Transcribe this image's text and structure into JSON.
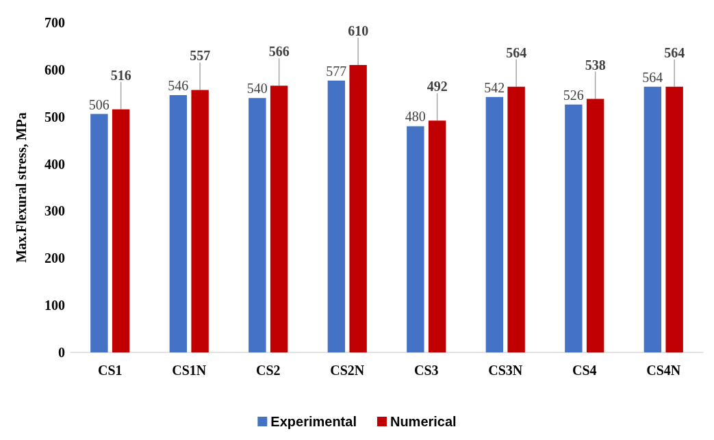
{
  "chart_data": {
    "type": "bar",
    "ylabel": "Max.Flexural stress, MPa",
    "categories": [
      "CS1",
      "CS1N",
      "CS2",
      "CS2N",
      "CS3",
      "CS3N",
      "CS4",
      "CS4N"
    ],
    "series": [
      {
        "name": "Experimental",
        "color": "#4472c4",
        "values": [
          506,
          546,
          540,
          577,
          480,
          542,
          526,
          564
        ]
      },
      {
        "name": "Numerical",
        "color": "#c00000",
        "values": [
          516,
          557,
          566,
          610,
          492,
          564,
          538,
          564
        ]
      }
    ],
    "ylim": [
      0,
      700
    ],
    "yticks": [
      0,
      100,
      200,
      300,
      400,
      500,
      600,
      700
    ],
    "grid": false,
    "legend": "bottom",
    "data_labels": true
  }
}
